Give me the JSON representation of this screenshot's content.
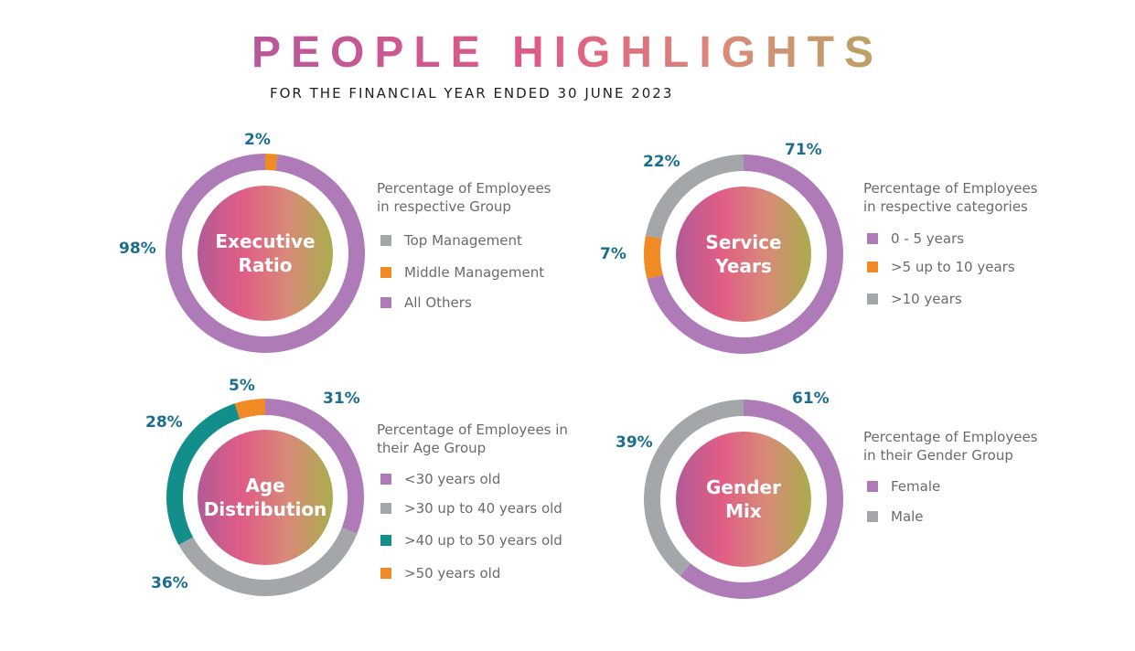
{
  "header": {
    "title": "PEOPLE HIGHLIGHTS",
    "subtitle": "FOR THE FINANCIAL YEAR ENDED 30 JUNE 2023"
  },
  "colors": {
    "purple": "#ae7ab8",
    "orange": "#f08a24",
    "grey": "#a4a7a9",
    "teal": "#138f8b",
    "label_blue": "#1b6e92",
    "center_gradient": [
      "#b35a96",
      "#e05d86",
      "#d88a78",
      "#a9ad4c"
    ]
  },
  "chart_data": [
    {
      "type": "pie",
      "center_label": [
        "Executive",
        "Ratio"
      ],
      "legend_title": [
        "Percentage of Employees",
        "in respective Group"
      ],
      "categories": [
        "Top Management",
        "Middle Management",
        "All Others"
      ],
      "values": [
        0,
        2,
        98
      ],
      "value_labels": [
        "",
        "2%",
        "98%"
      ],
      "colors": [
        "#a4a7a9",
        "#f08a24",
        "#ae7ab8"
      ]
    },
    {
      "type": "pie",
      "center_label": [
        "Service",
        "Years"
      ],
      "legend_title": [
        "Percentage of Employees",
        "in respective categories"
      ],
      "categories": [
        "0 - 5 years",
        ">5 up to 10 years",
        ">10 years"
      ],
      "values": [
        71,
        7,
        22
      ],
      "value_labels": [
        "71%",
        "7%",
        "22%"
      ],
      "colors": [
        "#ae7ab8",
        "#f08a24",
        "#a4a7a9"
      ]
    },
    {
      "type": "pie",
      "center_label": [
        "Age",
        "Distribution"
      ],
      "legend_title": [
        "Percentage of Employees in",
        "their Age Group"
      ],
      "categories": [
        "<30 years old",
        ">30 up to 40 years old",
        ">40 up to 50 years old",
        ">50 years old"
      ],
      "values": [
        31,
        36,
        28,
        5
      ],
      "value_labels": [
        "31%",
        "36%",
        "28%",
        "5%"
      ],
      "colors": [
        "#ae7ab8",
        "#a4a7a9",
        "#138f8b",
        "#f08a24"
      ]
    },
    {
      "type": "pie",
      "center_label": [
        "Gender",
        "Mix"
      ],
      "legend_title": [
        "Percentage of Employees",
        "in their Gender Group"
      ],
      "categories": [
        "Female",
        "Male"
      ],
      "values": [
        61,
        39
      ],
      "value_labels": [
        "61%",
        "39%"
      ],
      "colors": [
        "#ae7ab8",
        "#a4a7a9"
      ]
    }
  ]
}
